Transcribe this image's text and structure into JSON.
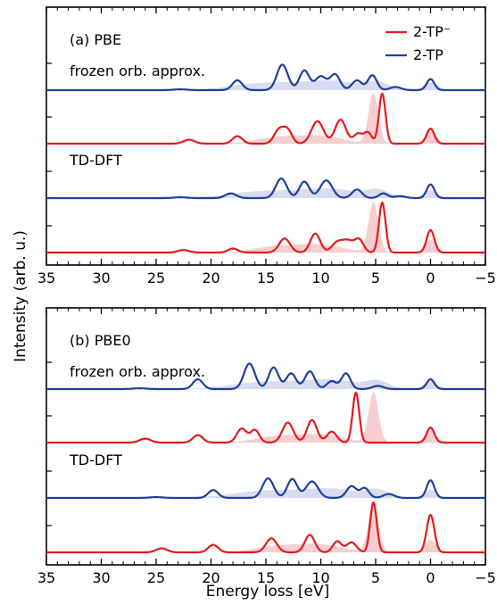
{
  "figure": {
    "ylabel": "Intensity (arb. u.)",
    "xlabel": "Energy loss [eV]"
  },
  "colors": {
    "red": "#e41a1c",
    "blue": "#1f3f9f",
    "red_fill": "#f6c9cc",
    "blue_fill": "#d5d8ec"
  },
  "legend": [
    {
      "label": "2-TP⁻",
      "color": "red"
    },
    {
      "label": "2-TP",
      "color": "blue"
    }
  ],
  "chart_data": [
    {
      "type": "line",
      "panel_label": "(a) PBE",
      "xlim": [
        35,
        -5
      ],
      "xticks": [
        35,
        30,
        25,
        20,
        15,
        10,
        5,
        0,
        -5
      ],
      "yticks_visible_labels": false,
      "sections": [
        {
          "label": "frozen orb. approx.",
          "series": [
            {
              "name": "2-TP",
              "color": "blue",
              "peaks": [
                [
                  22.8,
                  0.02,
                  0.6
                ],
                [
                  17.6,
                  0.25,
                  0.45
                ],
                [
                  13.5,
                  0.65,
                  0.5
                ],
                [
                  11.5,
                  0.5,
                  0.45
                ],
                [
                  10.0,
                  0.35,
                  0.5
                ],
                [
                  8.7,
                  0.4,
                  0.45
                ],
                [
                  6.7,
                  0.25,
                  0.45
                ],
                [
                  5.3,
                  0.38,
                  0.4
                ],
                [
                  3.2,
                  0.08,
                  0.5
                ],
                [
                  0.0,
                  0.28,
                  0.35
                ]
              ],
              "fill": [
                [
                  15,
                  0.18,
                  3
                ],
                [
                  9,
                  0.22,
                  2.5
                ],
                [
                  4.8,
                  0.18,
                  1
                ],
                [
                  0,
                  0.2,
                  0.6
                ]
              ]
            },
            {
              "name": "2-TP⁻",
              "color": "red",
              "peaks": [
                [
                  22.0,
                  0.08,
                  0.5
                ],
                [
                  17.6,
                  0.15,
                  0.45
                ],
                [
                  13.8,
                  0.28,
                  0.45
                ],
                [
                  13.0,
                  0.25,
                  0.4
                ],
                [
                  10.3,
                  0.45,
                  0.55
                ],
                [
                  8.2,
                  0.48,
                  0.5
                ],
                [
                  6.6,
                  0.2,
                  0.4
                ],
                [
                  5.7,
                  0.22,
                  0.35
                ],
                [
                  4.4,
                  1.0,
                  0.3
                ],
                [
                  0.0,
                  0.3,
                  0.35
                ]
              ],
              "fill": [
                [
                  14,
                  0.12,
                  2
                ],
                [
                  10,
                  0.15,
                  2
                ],
                [
                  5.2,
                  1.0,
                  0.45
                ],
                [
                  0,
                  0.25,
                  0.5
                ]
              ]
            }
          ]
        },
        {
          "label": "TD-DFT",
          "series": [
            {
              "name": "2-TP",
              "color": "blue",
              "peaks": [
                [
                  22.8,
                  0.02,
                  0.6
                ],
                [
                  18.2,
                  0.12,
                  0.5
                ],
                [
                  13.6,
                  0.5,
                  0.5
                ],
                [
                  11.5,
                  0.42,
                  0.45
                ],
                [
                  9.5,
                  0.45,
                  0.55
                ],
                [
                  6.7,
                  0.22,
                  0.45
                ],
                [
                  4.3,
                  0.12,
                  0.4
                ],
                [
                  2.8,
                  0.05,
                  0.5
                ],
                [
                  0.0,
                  0.35,
                  0.35
                ]
              ],
              "fill": [
                [
                  15,
                  0.18,
                  3
                ],
                [
                  9,
                  0.22,
                  2.5
                ],
                [
                  4.8,
                  0.18,
                  1
                ],
                [
                  0,
                  0.2,
                  0.6
                ]
              ]
            },
            {
              "name": "2-TP⁻",
              "color": "red",
              "peaks": [
                [
                  22.5,
                  0.05,
                  0.5
                ],
                [
                  18.0,
                  0.08,
                  0.45
                ],
                [
                  13.3,
                  0.28,
                  0.5
                ],
                [
                  10.5,
                  0.38,
                  0.45
                ],
                [
                  8.5,
                  0.2,
                  0.5
                ],
                [
                  7.5,
                  0.22,
                  0.5
                ],
                [
                  6.5,
                  0.25,
                  0.4
                ],
                [
                  4.4,
                  1.0,
                  0.3
                ],
                [
                  0.0,
                  0.45,
                  0.35
                ]
              ],
              "fill": [
                [
                  14,
                  0.12,
                  2
                ],
                [
                  10,
                  0.15,
                  2
                ],
                [
                  5.2,
                  1.0,
                  0.45
                ],
                [
                  0,
                  0.25,
                  0.5
                ]
              ]
            }
          ]
        }
      ]
    },
    {
      "type": "line",
      "panel_label": "(b) PBE0",
      "xlim": [
        35,
        -5
      ],
      "xticks": [
        35,
        30,
        25,
        20,
        15,
        10,
        5,
        0,
        -5
      ],
      "yticks_visible_labels": false,
      "sections": [
        {
          "label": "frozen orb. approx.",
          "series": [
            {
              "name": "2-TP",
              "color": "blue",
              "peaks": [
                [
                  26.5,
                  0.02,
                  0.6
                ],
                [
                  21.2,
                  0.25,
                  0.45
                ],
                [
                  16.5,
                  0.65,
                  0.5
                ],
                [
                  14.3,
                  0.55,
                  0.45
                ],
                [
                  12.7,
                  0.4,
                  0.45
                ],
                [
                  11.0,
                  0.45,
                  0.45
                ],
                [
                  9.0,
                  0.2,
                  0.45
                ],
                [
                  7.7,
                  0.4,
                  0.4
                ],
                [
                  4.8,
                  0.08,
                  0.5
                ],
                [
                  0.0,
                  0.25,
                  0.35
                ]
              ],
              "fill": [
                [
                  15,
                  0.18,
                  3
                ],
                [
                  9,
                  0.22,
                  2.5
                ],
                [
                  4.8,
                  0.18,
                  1
                ],
                [
                  0,
                  0.2,
                  0.6
                ]
              ]
            },
            {
              "name": "2-TP⁻",
              "color": "red",
              "peaks": [
                [
                  26.0,
                  0.08,
                  0.5
                ],
                [
                  21.2,
                  0.15,
                  0.45
                ],
                [
                  17.2,
                  0.28,
                  0.45
                ],
                [
                  16.0,
                  0.25,
                  0.4
                ],
                [
                  13.0,
                  0.4,
                  0.5
                ],
                [
                  10.8,
                  0.45,
                  0.45
                ],
                [
                  9.0,
                  0.22,
                  0.45
                ],
                [
                  6.8,
                  1.0,
                  0.3
                ],
                [
                  0.0,
                  0.3,
                  0.35
                ]
              ],
              "fill": [
                [
                  14,
                  0.12,
                  2
                ],
                [
                  10,
                  0.15,
                  2
                ],
                [
                  5.2,
                  1.0,
                  0.45
                ],
                [
                  0,
                  0.25,
                  0.5
                ]
              ]
            }
          ]
        },
        {
          "label": "TD-DFT",
          "series": [
            {
              "name": "2-TP",
              "color": "blue",
              "peaks": [
                [
                  25.0,
                  0.02,
                  0.6
                ],
                [
                  19.8,
                  0.2,
                  0.45
                ],
                [
                  14.8,
                  0.5,
                  0.5
                ],
                [
                  12.6,
                  0.48,
                  0.45
                ],
                [
                  10.8,
                  0.42,
                  0.55
                ],
                [
                  7.2,
                  0.3,
                  0.45
                ],
                [
                  6.0,
                  0.25,
                  0.4
                ],
                [
                  3.8,
                  0.1,
                  0.5
                ],
                [
                  0.0,
                  0.45,
                  0.35
                ]
              ],
              "fill": [
                [
                  15,
                  0.18,
                  3
                ],
                [
                  9,
                  0.22,
                  2.5
                ],
                [
                  4.8,
                  0.18,
                  1
                ],
                [
                  0,
                  0.2,
                  0.6
                ]
              ]
            },
            {
              "name": "2-TP⁻",
              "color": "red",
              "peaks": [
                [
                  24.5,
                  0.08,
                  0.5
                ],
                [
                  19.8,
                  0.15,
                  0.45
                ],
                [
                  14.5,
                  0.28,
                  0.5
                ],
                [
                  11.0,
                  0.35,
                  0.45
                ],
                [
                  8.5,
                  0.22,
                  0.4
                ],
                [
                  7.2,
                  0.2,
                  0.45
                ],
                [
                  5.2,
                  1.0,
                  0.3
                ],
                [
                  0.0,
                  0.75,
                  0.35
                ]
              ],
              "fill": [
                [
                  14,
                  0.12,
                  2
                ],
                [
                  10,
                  0.15,
                  2
                ],
                [
                  5.2,
                  1.0,
                  0.45
                ],
                [
                  0,
                  0.25,
                  0.5
                ]
              ]
            }
          ]
        }
      ]
    }
  ]
}
